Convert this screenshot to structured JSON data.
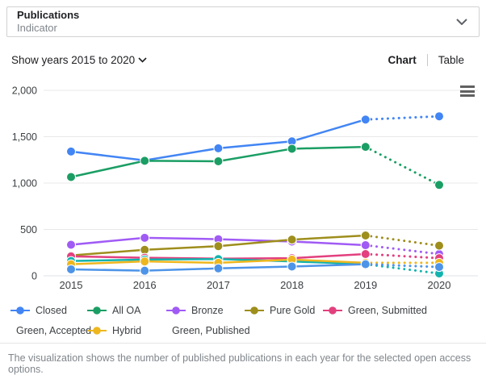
{
  "header": {
    "title": "Publications",
    "subtitle": "Indicator"
  },
  "controls": {
    "show_years": "Show years 2015 to 2020",
    "tabs": [
      {
        "label": "Chart",
        "active": true
      },
      {
        "label": "Table",
        "active": false
      }
    ]
  },
  "icons": {
    "header_chevron": "chevron-down",
    "show_years_chevron": "chevron-down",
    "chart_menu": "hamburger-menu"
  },
  "chart_data": {
    "type": "line",
    "title": "",
    "xlabel": "",
    "ylabel": "",
    "categories": [
      "2015",
      "2016",
      "2017",
      "2018",
      "2019",
      "2020"
    ],
    "series": [
      {
        "name": "Closed",
        "color": "#4285f4",
        "values": [
          1340,
          1245,
          1375,
          1450,
          1685,
          1720
        ]
      },
      {
        "name": "All OA",
        "color": "#1b9e64",
        "values": [
          1065,
          1240,
          1235,
          1370,
          1390,
          980
        ]
      },
      {
        "name": "Bronze",
        "color": "#a05bf5",
        "values": [
          335,
          410,
          395,
          370,
          330,
          235
        ]
      },
      {
        "name": "Pure Gold",
        "color": "#9e8e1c",
        "values": [
          220,
          280,
          320,
          390,
          435,
          325
        ]
      },
      {
        "name": "Green, Submitted",
        "color": "#e2407e",
        "values": [
          210,
          195,
          185,
          190,
          235,
          190
        ]
      },
      {
        "name": "Green, Accepted",
        "color": "#12b3ad",
        "values": [
          160,
          175,
          180,
          155,
          125,
          25
        ]
      },
      {
        "name": "Hybrid",
        "color": "#eeb71f",
        "values": [
          125,
          155,
          140,
          175,
          140,
          140
        ]
      },
      {
        "name": "Green, Published",
        "color": "#4d94e8",
        "values": [
          70,
          55,
          80,
          100,
          125,
          95
        ]
      }
    ],
    "dotted_from_index": 4,
    "ylim": [
      0,
      2000
    ],
    "yticks": [
      "0",
      "500",
      "1,000",
      "1,500",
      "2,000"
    ],
    "grid": true,
    "legend_position": "bottom"
  },
  "caption": "The visualization shows the number of published publications in each year for the selected open access options."
}
